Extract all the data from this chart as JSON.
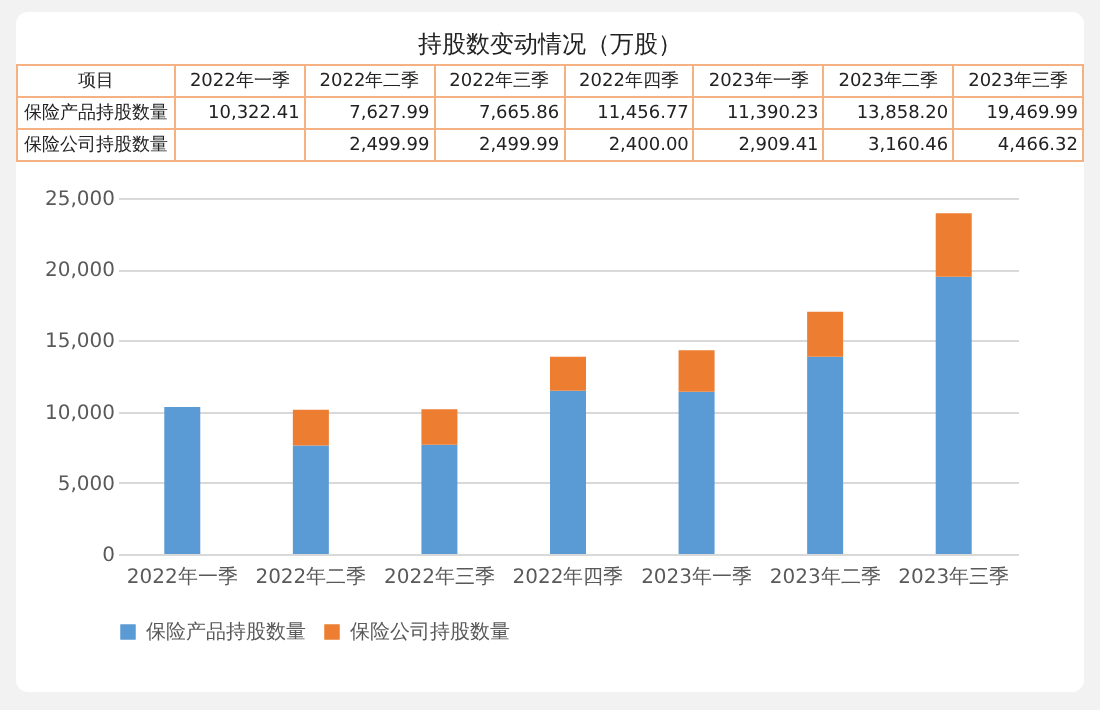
{
  "chart_data": {
    "type": "bar",
    "title": "持股数变动情况（万股）",
    "annotations": [
      "项目"
    ],
    "categories": [
      "2022年一季",
      "2022年二季",
      "2022年三季",
      "2022年四季",
      "2023年一季",
      "2023年二季",
      "2023年三季"
    ],
    "stacked": true,
    "series": [
      {
        "name": "保险产品持股数量",
        "color": "#5b9bd5",
        "values": [
          10322.41,
          7627.99,
          7665.86,
          11456.77,
          11390.23,
          13858.2,
          19469.99
        ],
        "value_labels": [
          "10,322.41",
          "7,627.99",
          "7,665.86",
          "11,456.77",
          "11,390.23",
          "13,858.20",
          "19,469.99"
        ]
      },
      {
        "name": "保险公司持股数量",
        "color": "#ed7d31",
        "values": [
          null,
          2499.99,
          2499.99,
          2400.0,
          2909.41,
          3160.46,
          4466.32
        ],
        "value_labels": [
          null,
          "2,499.99",
          "2,499.99",
          "2,400.00",
          "2,909.41",
          "3,160.46",
          "4,466.32"
        ]
      }
    ],
    "ylim": [
      0,
      25000
    ],
    "yticks": [
      0,
      {
        "value": 5000,
        "label": "5,000"
      },
      {
        "value": 10000,
        "label": "10,000"
      },
      {
        "value": 15000,
        "label": "15,000"
      },
      {
        "value": 20000,
        "label": "20,000"
      },
      {
        "value": 25000,
        "label": "25,000"
      }
    ],
    "grid": "y",
    "legend": "bottom"
  }
}
